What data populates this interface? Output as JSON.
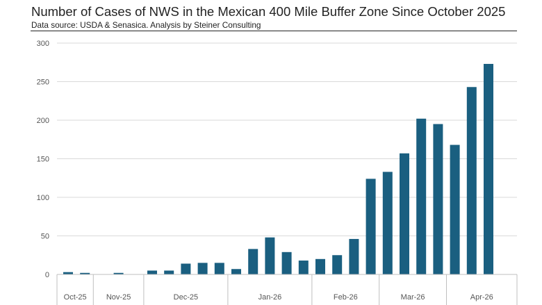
{
  "header": {
    "title": "Number of Cases of NWS in the Mexican 400 Mile Buffer Zone Since October 2025",
    "subtitle": "Data source: USDA & Senasica.  Analysis by Steiner Consulting"
  },
  "chart_data": {
    "type": "bar",
    "title": "Number of Cases of NWS in the Mexican 400 Mile Buffer Zone Since October 2025",
    "subtitle": "Data source: USDA & Senasica.  Analysis by Steiner Consulting",
    "xlabel": "",
    "ylabel": "",
    "ylim": [
      0,
      300
    ],
    "yticks": [
      0,
      50,
      100,
      150,
      200,
      250,
      300
    ],
    "grid": true,
    "color": "#1a5f80",
    "months": [
      {
        "label": "Oct-25",
        "values": [
          3,
          2
        ]
      },
      {
        "label": "Nov-25",
        "values": [
          0,
          2,
          0
        ]
      },
      {
        "label": "Dec-25",
        "values": [
          5,
          5,
          14,
          15,
          15
        ]
      },
      {
        "label": "Jan-26",
        "values": [
          7,
          33,
          48,
          29,
          18
        ]
      },
      {
        "label": "Feb-26",
        "values": [
          20,
          25,
          46,
          124
        ]
      },
      {
        "label": "Mar-26",
        "values": [
          133,
          157,
          202,
          195
        ]
      },
      {
        "label": "Apr-26",
        "values": [
          168,
          243,
          273
        ]
      }
    ]
  }
}
